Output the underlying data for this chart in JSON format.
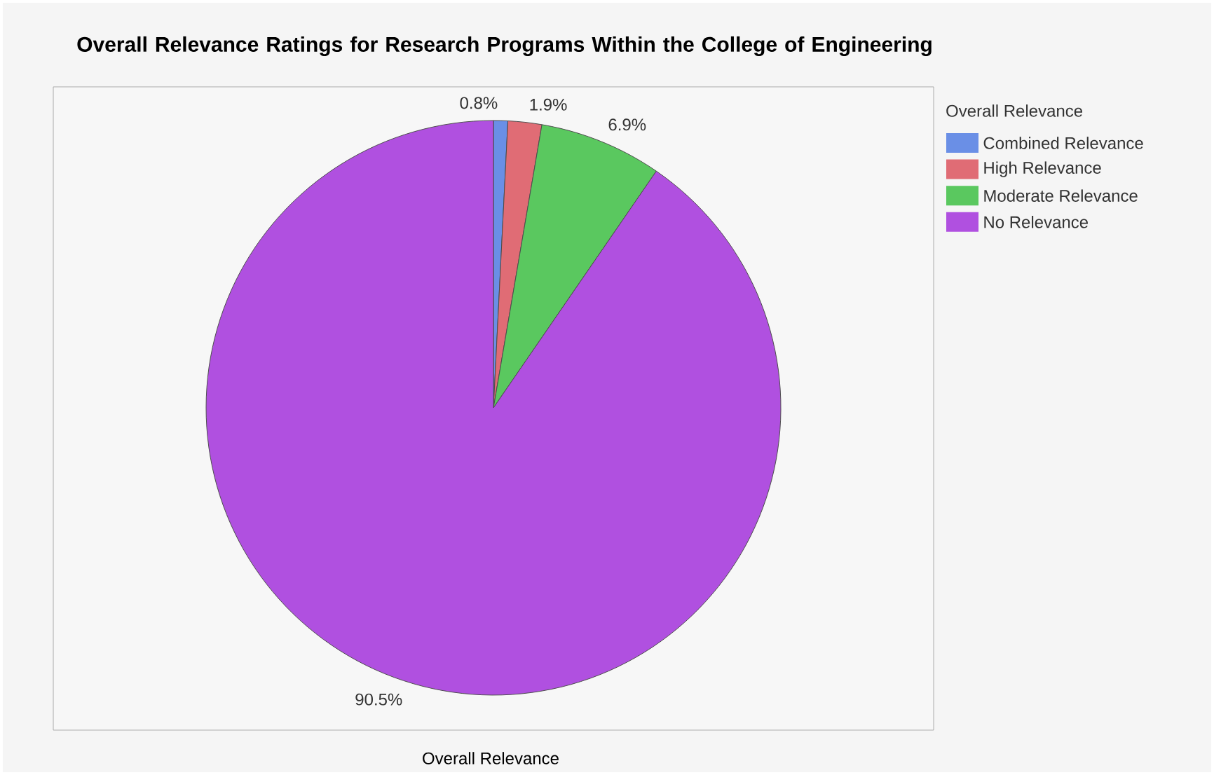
{
  "chart_data": {
    "type": "pie",
    "title": "Overall Relevance Ratings for Research Programs Within the College of Engineering",
    "xlabel": "Overall Relevance",
    "legend_title": "Overall Relevance",
    "legend": "right",
    "categories": [
      "Combined Relevance",
      "High Relevance",
      "Moderate Relevance",
      "No Relevance"
    ],
    "values": [
      0.8,
      1.9,
      6.9,
      90.5
    ],
    "value_labels": [
      "0.8%",
      "1.9%",
      "6.9%",
      "90.5%"
    ],
    "colors": [
      "#6a8fe6",
      "#e06c75",
      "#5ac85f",
      "#b050e0"
    ]
  }
}
